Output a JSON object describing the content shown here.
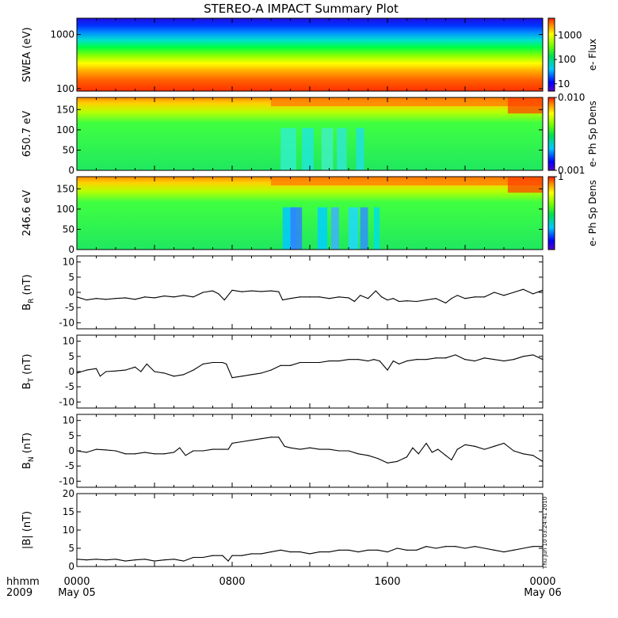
{
  "chart_data": {
    "type": "heatmap",
    "title": "STEREO-A IMPACT Summary Plot",
    "x_axis": {
      "format_label": "hhmm",
      "year_label": "2009",
      "tick_labels": [
        "0000",
        "0800",
        "1600",
        "0000"
      ],
      "tick_hours": [
        0,
        8,
        16,
        24
      ],
      "date_labels": [
        {
          "hour": 0,
          "text": "May 05"
        },
        {
          "hour": 24,
          "text": "May 06"
        }
      ],
      "xlim_hours": [
        0,
        24
      ]
    },
    "stamp": "Thu Jun 10 03:24:41 2010",
    "panels": [
      {
        "id": "swea",
        "kind": "spectrogram",
        "ylabel": "SWEA (eV)",
        "yscale": "log",
        "ylim": [
          90,
          2000
        ],
        "yticks": [
          {
            "v": 100,
            "label": "100"
          },
          {
            "v": 1000,
            "label": "1000"
          }
        ],
        "colorbar": {
          "label": "e- Flux",
          "scale": "log",
          "range": [
            5,
            5000
          ],
          "ticks": [
            {
              "v": 10,
              "label": "10"
            },
            {
              "v": 100,
              "label": "100"
            },
            {
              "v": 1000,
              "label": "1000"
            }
          ]
        },
        "profile_note": "flux highest at low energy, decreasing with energy; nearly constant in time"
      },
      {
        "id": "pad650",
        "kind": "spectrogram",
        "ylabel": "650.7 eV",
        "yscale": "linear",
        "ylim": [
          0,
          180
        ],
        "yticks": [
          {
            "v": 0,
            "label": "0"
          },
          {
            "v": 50,
            "label": "50"
          },
          {
            "v": 100,
            "label": "100"
          },
          {
            "v": 150,
            "label": "150"
          }
        ],
        "colorbar": {
          "label": "e- Ph Sp Dens",
          "scale": "log",
          "range": [
            0.001,
            0.01
          ],
          "ticks": [
            {
              "v": 0.001,
              "label": "0.001"
            },
            {
              "v": 0.01,
              "label": "0.010"
            }
          ]
        }
      },
      {
        "id": "pad246",
        "kind": "spectrogram",
        "ylabel": "246.6 eV",
        "yscale": "linear",
        "ylim": [
          0,
          180
        ],
        "yticks": [
          {
            "v": 0,
            "label": "0"
          },
          {
            "v": 50,
            "label": "50"
          },
          {
            "v": 100,
            "label": "100"
          },
          {
            "v": 150,
            "label": "150"
          }
        ],
        "colorbar": {
          "label": "e- Ph Sp Dens",
          "scale": "linear",
          "range": [
            0,
            1
          ],
          "ticks": [
            {
              "v": 1,
              "label": "1"
            }
          ]
        }
      },
      {
        "id": "br",
        "kind": "line",
        "ylabel_main": "B",
        "ylabel_sub": "R",
        "ylabel_unit": " (nT)",
        "ylim": [
          -12,
          12
        ],
        "yticks": [
          {
            "v": -10,
            "label": "-10"
          },
          {
            "v": -5,
            "label": "-5"
          },
          {
            "v": 0,
            "label": "0"
          },
          {
            "v": 5,
            "label": "5"
          },
          {
            "v": 10,
            "label": "10"
          }
        ],
        "series": {
          "x": [
            0,
            0.5,
            1,
            1.5,
            2,
            2.5,
            3,
            3.5,
            4,
            4.5,
            5,
            5.5,
            6,
            6.5,
            7,
            7.3,
            7.6,
            8,
            8.5,
            9,
            9.5,
            10,
            10.4,
            10.6,
            11,
            11.5,
            12,
            12.5,
            13,
            13.5,
            14,
            14.3,
            14.6,
            15,
            15.4,
            15.7,
            16,
            16.3,
            16.6,
            17,
            17.5,
            18,
            18.5,
            19,
            19.3,
            19.6,
            20,
            20.5,
            21,
            21.5,
            22,
            22.5,
            23,
            23.5,
            24
          ],
          "y": [
            -1.5,
            -2.5,
            -2,
            -2.3,
            -2,
            -1.8,
            -2.3,
            -1.5,
            -1.8,
            -1.2,
            -1.5,
            -1,
            -1.5,
            0,
            0.5,
            -0.5,
            -2.5,
            0.7,
            0.2,
            0.5,
            0.3,
            0.5,
            0.2,
            -2.5,
            -2,
            -1.5,
            -1.5,
            -1.5,
            -2,
            -1.5,
            -1.8,
            -3,
            -1,
            -2,
            0.5,
            -1.5,
            -2.5,
            -2,
            -3,
            -2.8,
            -3,
            -2.5,
            -2,
            -3.5,
            -2,
            -1,
            -2,
            -1.5,
            -1.5,
            0,
            -1,
            0,
            1,
            -0.5,
            0.7
          ]
        }
      },
      {
        "id": "bt",
        "kind": "line",
        "ylabel_main": "B",
        "ylabel_sub": "T",
        "ylabel_unit": " (nT)",
        "ylim": [
          -12,
          12
        ],
        "yticks": [
          {
            "v": -10,
            "label": "-10"
          },
          {
            "v": -5,
            "label": "-5"
          },
          {
            "v": 0,
            "label": "0"
          },
          {
            "v": 5,
            "label": "5"
          },
          {
            "v": 10,
            "label": "10"
          }
        ],
        "series": {
          "x": [
            0,
            0.5,
            1,
            1.2,
            1.5,
            2,
            2.5,
            3,
            3.3,
            3.6,
            4,
            4.5,
            5,
            5.5,
            6,
            6.5,
            7,
            7.5,
            7.7,
            8,
            8.5,
            9,
            9.5,
            10,
            10.5,
            11,
            11.5,
            12,
            12.5,
            13,
            13.5,
            14,
            14.5,
            15,
            15.3,
            15.6,
            16,
            16.3,
            16.6,
            17,
            17.5,
            18,
            18.5,
            19,
            19.5,
            20,
            20.5,
            21,
            21.5,
            22,
            22.5,
            23,
            23.5,
            24
          ],
          "y": [
            -0.5,
            0.5,
            1,
            -1.5,
            0,
            0.2,
            0.5,
            1.5,
            0,
            2.5,
            0,
            -0.5,
            -1.5,
            -1,
            0.5,
            2.5,
            3,
            3,
            2.5,
            -2,
            -1.5,
            -1,
            -0.5,
            0.5,
            2,
            2,
            3,
            3,
            3,
            3.5,
            3.5,
            4,
            4,
            3.5,
            4,
            3.5,
            0.5,
            3.5,
            2.5,
            3.5,
            4,
            4,
            4.5,
            4.5,
            5.5,
            4,
            3.5,
            4.5,
            4,
            3.5,
            4,
            5,
            5.5,
            4
          ]
        }
      },
      {
        "id": "bn",
        "kind": "line",
        "ylabel_main": "B",
        "ylabel_sub": "N",
        "ylabel_unit": " (nT)",
        "ylim": [
          -12,
          12
        ],
        "yticks": [
          {
            "v": -10,
            "label": "-10"
          },
          {
            "v": -5,
            "label": "-5"
          },
          {
            "v": 0,
            "label": "0"
          },
          {
            "v": 5,
            "label": "5"
          },
          {
            "v": 10,
            "label": "10"
          }
        ],
        "series": {
          "x": [
            0,
            0.5,
            1,
            1.5,
            2,
            2.5,
            3,
            3.5,
            4,
            4.5,
            5,
            5.3,
            5.6,
            6,
            6.5,
            7,
            7.5,
            7.8,
            8,
            8.5,
            9,
            9.5,
            10,
            10.4,
            10.7,
            11,
            11.5,
            12,
            12.5,
            13,
            13.5,
            14,
            14.5,
            15,
            15.5,
            16,
            16.5,
            17,
            17.3,
            17.6,
            18,
            18.3,
            18.6,
            19,
            19.3,
            19.6,
            20,
            20.5,
            21,
            21.5,
            22,
            22.5,
            23,
            23.5,
            24
          ],
          "y": [
            0,
            -0.5,
            0.5,
            0.3,
            0,
            -1,
            -1,
            -0.5,
            -1,
            -1,
            -0.5,
            1,
            -1.5,
            0,
            0,
            0.5,
            0.5,
            0.5,
            2.5,
            3,
            3.5,
            4,
            4.5,
            4.5,
            1.5,
            1,
            0.5,
            1,
            0.5,
            0.5,
            0,
            0,
            -1,
            -1.5,
            -2.5,
            -4,
            -3.5,
            -2,
            1,
            -1,
            2.5,
            -0.5,
            0.5,
            -1.5,
            -3,
            0.5,
            2,
            1.5,
            0.5,
            1.5,
            2.5,
            0,
            -1,
            -1.5,
            -3.5
          ]
        }
      },
      {
        "id": "bmag",
        "kind": "line",
        "ylabel_main": "|B| (nT)",
        "ylim": [
          0,
          20
        ],
        "yticks": [
          {
            "v": 0,
            "label": "0"
          },
          {
            "v": 5,
            "label": "5"
          },
          {
            "v": 10,
            "label": "10"
          },
          {
            "v": 15,
            "label": "15"
          },
          {
            "v": 20,
            "label": "20"
          }
        ],
        "series": {
          "x": [
            0,
            0.5,
            1,
            1.5,
            2,
            2.5,
            3,
            3.5,
            4,
            4.5,
            5,
            5.5,
            6,
            6.5,
            7,
            7.5,
            7.8,
            8,
            8.5,
            9,
            9.5,
            10,
            10.5,
            11,
            11.5,
            12,
            12.5,
            13,
            13.5,
            14,
            14.5,
            15,
            15.5,
            16,
            16.5,
            17,
            17.5,
            18,
            18.5,
            19,
            19.5,
            20,
            20.5,
            21,
            21.5,
            22,
            22.5,
            23,
            23.5,
            24
          ],
          "y": [
            2,
            1.8,
            2,
            1.8,
            2,
            1.5,
            1.8,
            2,
            1.5,
            1.8,
            2,
            1.5,
            2.5,
            2.5,
            3,
            3,
            1.5,
            3,
            3,
            3.5,
            3.5,
            4,
            4.5,
            4,
            4,
            3.5,
            4,
            4,
            4.5,
            4.5,
            4,
            4.5,
            4.5,
            4,
            5,
            4.5,
            4.5,
            5.5,
            5,
            5.5,
            5.5,
            5,
            5.5,
            5,
            4.5,
            4,
            4.5,
            5,
            5.5,
            5.5
          ]
        }
      }
    ]
  }
}
